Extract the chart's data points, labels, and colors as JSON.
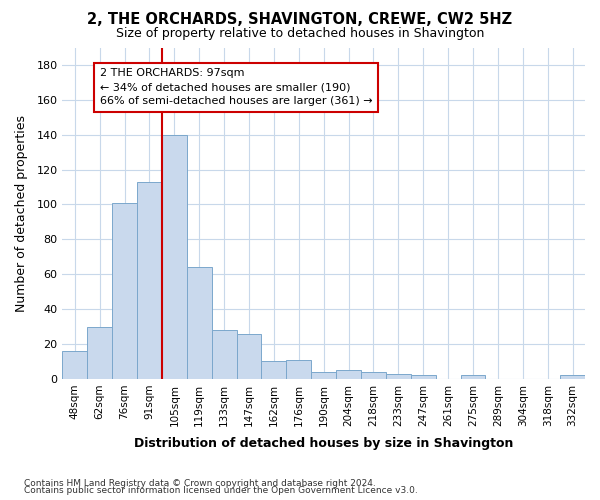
{
  "title": "2, THE ORCHARDS, SHAVINGTON, CREWE, CW2 5HZ",
  "subtitle": "Size of property relative to detached houses in Shavington",
  "xlabel": "Distribution of detached houses by size in Shavington",
  "ylabel": "Number of detached properties",
  "bar_color": "#c9d9ed",
  "bar_edge_color": "#7ba7cc",
  "fig_background": "#ffffff",
  "ax_background": "#ffffff",
  "grid_color": "#c8d8ea",
  "categories": [
    "48sqm",
    "62sqm",
    "76sqm",
    "91sqm",
    "105sqm",
    "119sqm",
    "133sqm",
    "147sqm",
    "162sqm",
    "176sqm",
    "190sqm",
    "204sqm",
    "218sqm",
    "233sqm",
    "247sqm",
    "261sqm",
    "275sqm",
    "289sqm",
    "304sqm",
    "318sqm",
    "332sqm"
  ],
  "values": [
    16,
    30,
    101,
    113,
    140,
    64,
    28,
    26,
    10,
    11,
    4,
    5,
    4,
    3,
    2,
    0,
    2,
    0,
    0,
    0,
    2
  ],
  "ylim": [
    0,
    190
  ],
  "yticks": [
    0,
    20,
    40,
    60,
    80,
    100,
    120,
    140,
    160,
    180
  ],
  "property_line_color": "#cc0000",
  "property_line_x": 3.5,
  "annotation_title": "2 THE ORCHARDS: 97sqm",
  "annotation_line1": "← 34% of detached houses are smaller (190)",
  "annotation_line2": "66% of semi-detached houses are larger (361) →",
  "annotation_box_facecolor": "#ffffff",
  "annotation_box_edgecolor": "#cc0000",
  "footnote1": "Contains HM Land Registry data © Crown copyright and database right 2024.",
  "footnote2": "Contains public sector information licensed under the Open Government Licence v3.0."
}
